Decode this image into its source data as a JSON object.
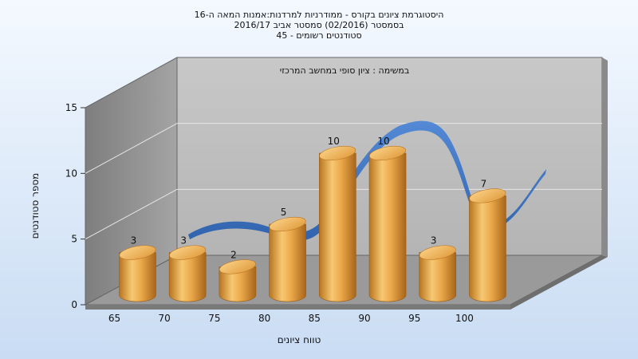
{
  "chart_data": {
    "type": "bar",
    "title_lines": [
      "היסטוגרמת ציונים בקורס - ממודרניות למרדנות:אמנות המאה ה-16",
      "בסמסטר  (02/2016)  סמסטר אביב 2016/17",
      "סטודנטים רשומים - 45"
    ],
    "subtitle": "במשימה : ציון סופי במחשב המרכזי",
    "xlabel": "טווח ציונים",
    "ylabel": "מספר סטודנטים",
    "categories": [
      "65",
      "70",
      "75",
      "80",
      "85",
      "90",
      "95",
      "100"
    ],
    "values": [
      3,
      3,
      2,
      5,
      10,
      10,
      3,
      7
    ],
    "yticks": [
      0,
      5,
      10,
      15
    ],
    "ylim": [
      0,
      15
    ],
    "grid": true,
    "bar_color": "#f0b04a",
    "curve_color": "#3f78cc"
  }
}
